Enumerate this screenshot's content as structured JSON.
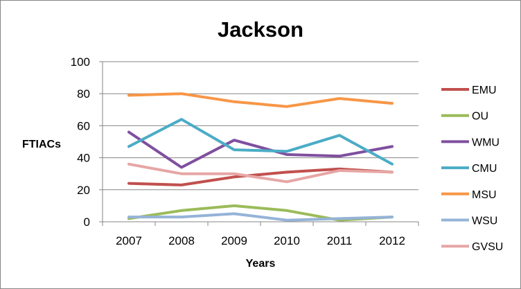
{
  "chart_data": {
    "type": "line",
    "title": "Jackson",
    "xlabel": "Years",
    "ylabel": "FTIACs",
    "ylim": [
      0,
      100
    ],
    "yticks": [
      0,
      20,
      40,
      60,
      80,
      100
    ],
    "categories": [
      "2007",
      "2008",
      "2009",
      "2010",
      "2011",
      "2012"
    ],
    "grid": true,
    "legend_position": "right",
    "series": [
      {
        "name": "EMU",
        "color": "#C0504D",
        "values": [
          24,
          23,
          28,
          31,
          33,
          31
        ]
      },
      {
        "name": "OU",
        "color": "#9BBB59",
        "values": [
          2,
          7,
          10,
          7,
          1,
          3
        ]
      },
      {
        "name": "WMU",
        "color": "#7F4F9F",
        "values": [
          56,
          34,
          51,
          42,
          41,
          47
        ]
      },
      {
        "name": "CMU",
        "color": "#4BACC6",
        "values": [
          47,
          64,
          45,
          44,
          54,
          36
        ]
      },
      {
        "name": "MSU",
        "color": "#F79646",
        "values": [
          79,
          80,
          75,
          72,
          77,
          74
        ]
      },
      {
        "name": "WSU",
        "color": "#95B3D7",
        "values": [
          3,
          3,
          5,
          1,
          2,
          3
        ]
      },
      {
        "name": "GVSU",
        "color": "#E6A6A5",
        "values": [
          36,
          30,
          30,
          25,
          32,
          31
        ]
      }
    ]
  }
}
